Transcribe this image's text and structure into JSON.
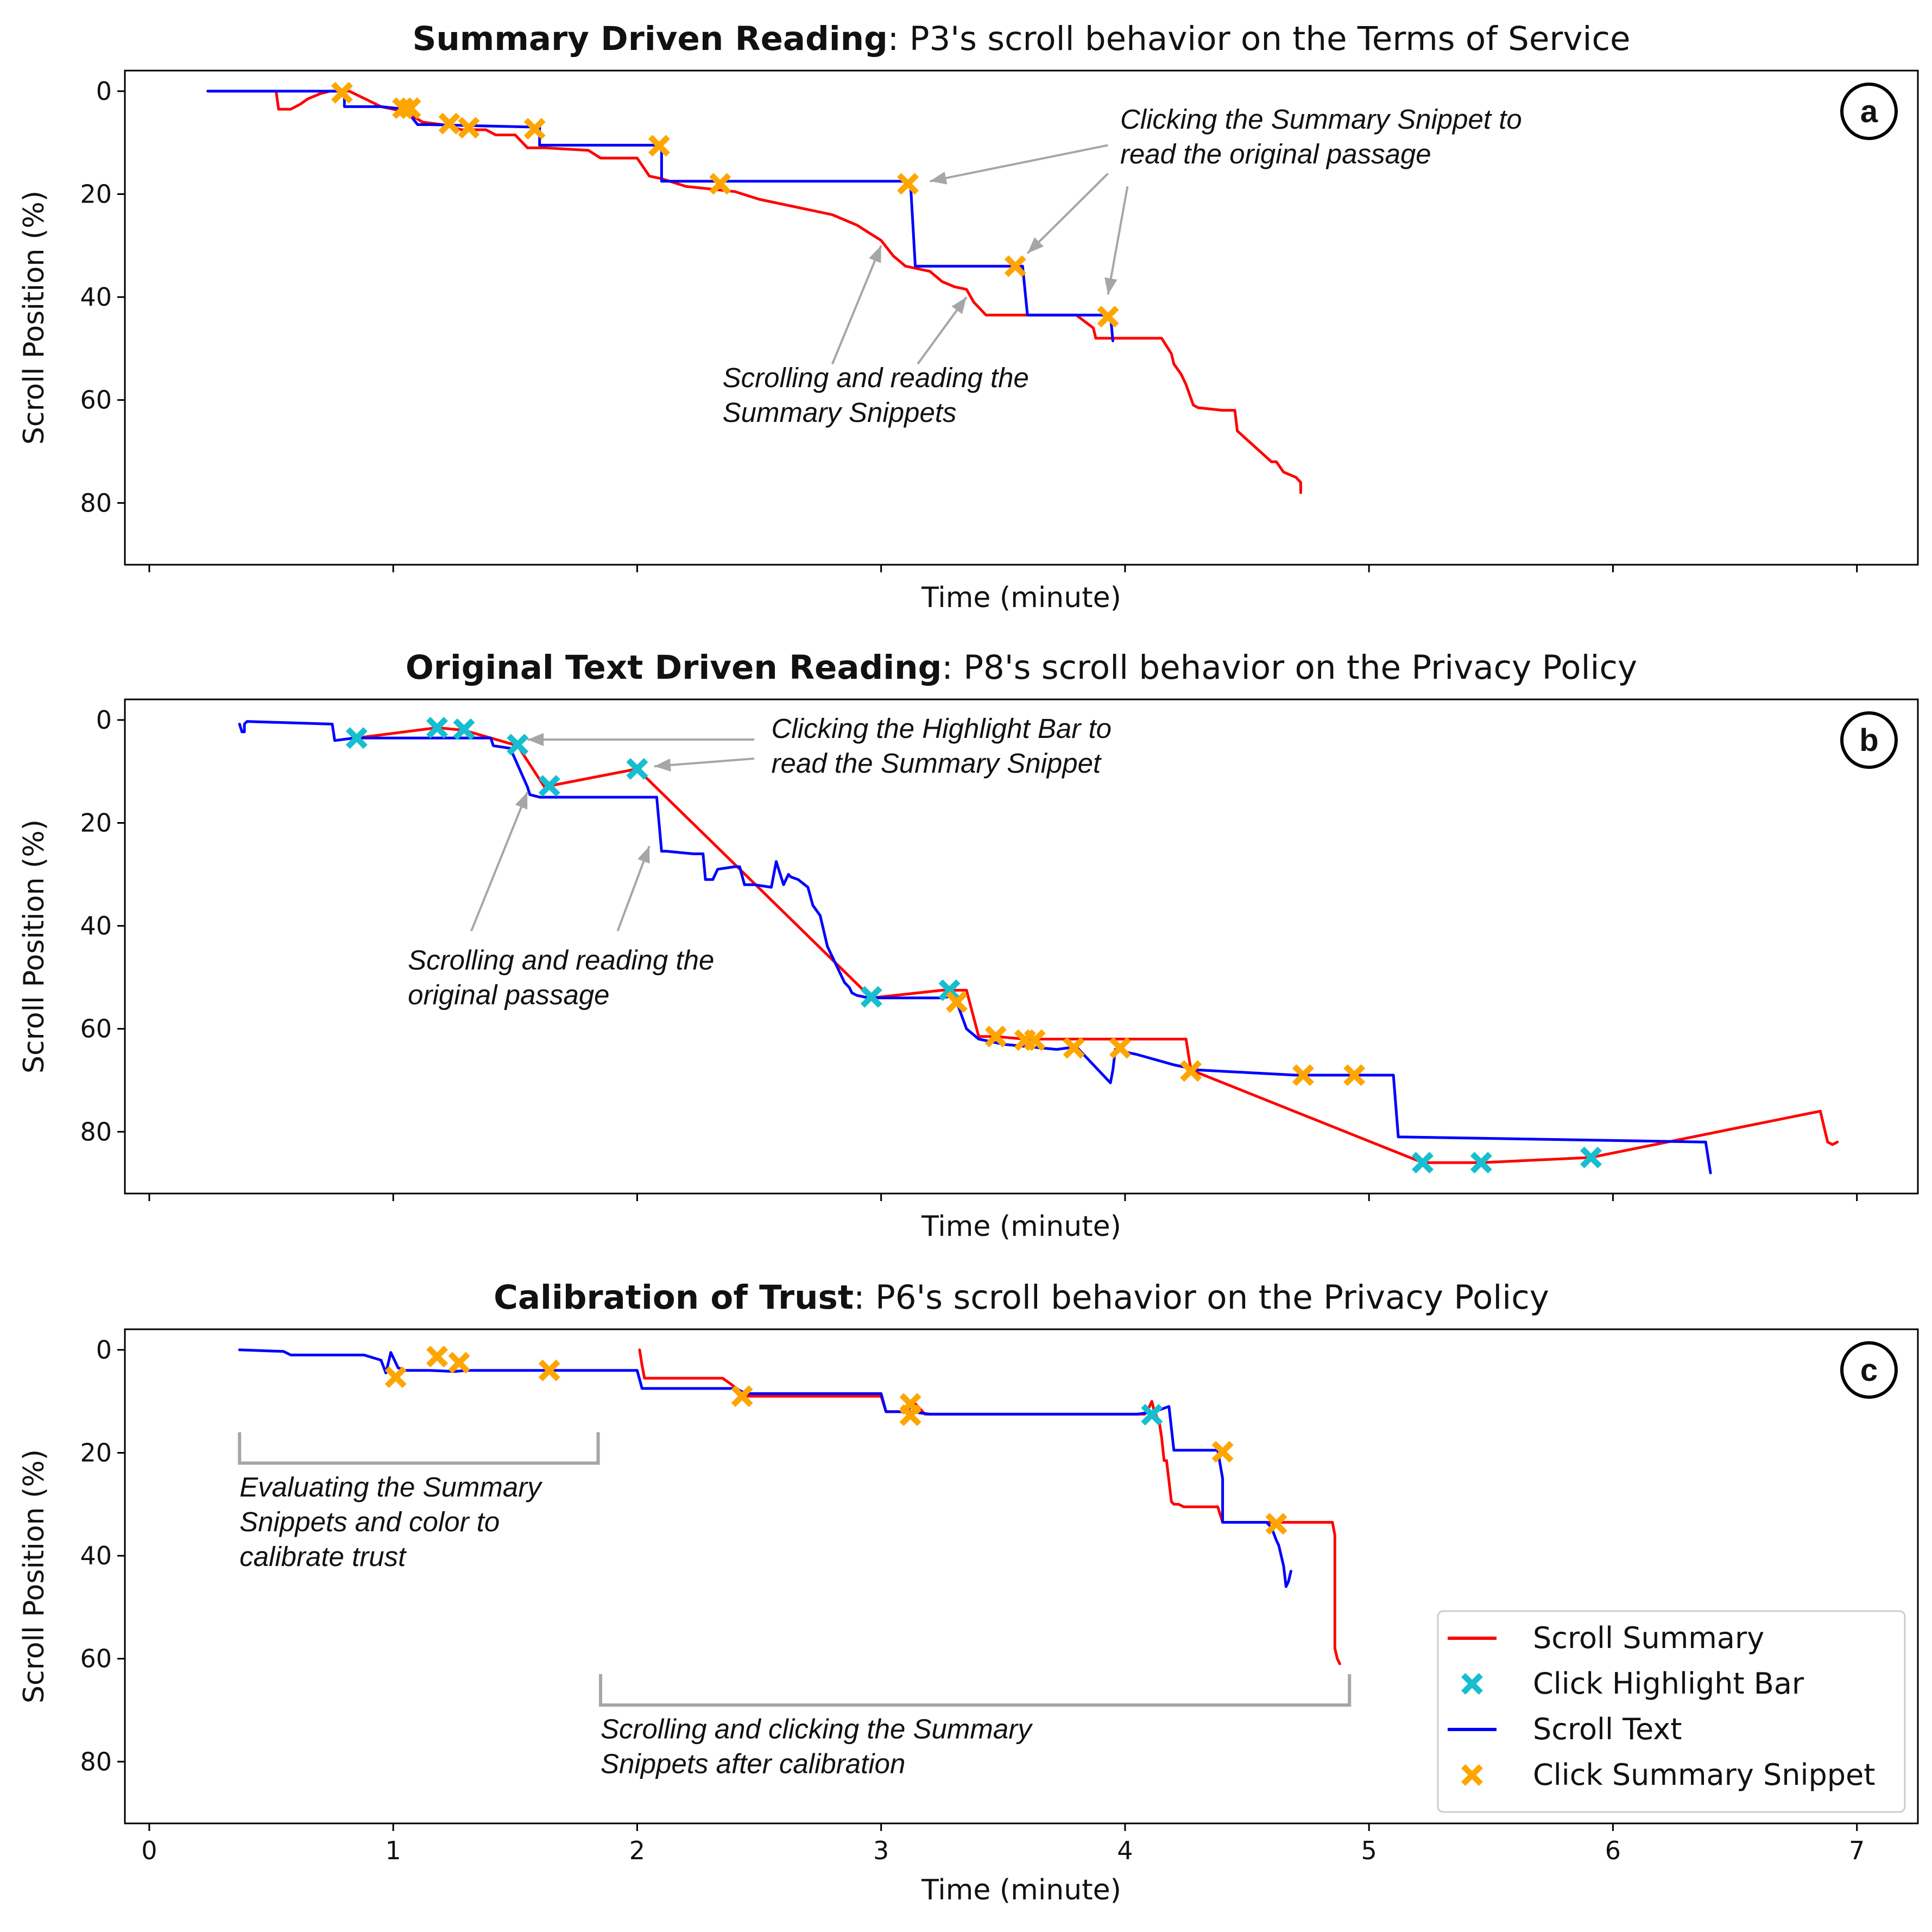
{
  "colors": {
    "scroll_summary": "#ff0000",
    "scroll_text": "#0000ff",
    "click_highlight_bar": "#17becf",
    "click_summary_snippet": "#ffa500",
    "annotation_arrow": "#a6a6a6",
    "bracket": "#a6a6a6"
  },
  "legend": {
    "position": "lower-right",
    "entries": [
      {
        "label": "Scroll Summary",
        "kind": "line",
        "color_key": "scroll_summary"
      },
      {
        "label": "Click Highlight Bar",
        "kind": "marker",
        "color_key": "click_highlight_bar"
      },
      {
        "label": "Scroll Text",
        "kind": "line",
        "color_key": "scroll_text"
      },
      {
        "label": "Click Summary Snippet",
        "kind": "marker",
        "color_key": "click_summary_snippet"
      }
    ]
  },
  "chart_data": [
    {
      "type": "line",
      "panel": "a",
      "title_bold": "Summary Driven Reading",
      "title_rest": ":  P3's scroll behavior on the Terms of Service",
      "xlabel": "Time (minute)",
      "ylabel": "Scroll Position (%)",
      "xlim": [
        -0.1,
        7.25
      ],
      "ylim": [
        92,
        -4
      ],
      "xticks": [
        0,
        1,
        2,
        3,
        4,
        5,
        6,
        7
      ],
      "yticks": [
        0,
        20,
        40,
        60,
        80
      ],
      "show_xtick_labels": false,
      "series": [
        {
          "name": "Scroll Summary",
          "color_key": "scroll_summary",
          "x": [
            0.24,
            0.52,
            0.53,
            0.58,
            0.62,
            0.65,
            0.7,
            0.74,
            0.82,
            0.95,
            1.05,
            1.12,
            1.2,
            1.28,
            1.38,
            1.42,
            1.5,
            1.55,
            1.62,
            1.8,
            1.85,
            2.0,
            2.05,
            2.1,
            2.2,
            2.4,
            2.5,
            2.65,
            2.8,
            2.9,
            2.95,
            3.0,
            3.05,
            3.1,
            3.2,
            3.25,
            3.3,
            3.35,
            3.38,
            3.4,
            3.43,
            3.5,
            3.62,
            3.8,
            3.87,
            3.88,
            3.95,
            4.0,
            4.15,
            4.19,
            4.2,
            4.23,
            4.25,
            4.28,
            4.3,
            4.4,
            4.45,
            4.46,
            4.6,
            4.62,
            4.65,
            4.7,
            4.72,
            4.72
          ],
          "y": [
            0,
            0,
            3.5,
            3.5,
            2.5,
            1.5,
            0.5,
            0,
            0,
            3,
            4,
            6,
            6.5,
            7.5,
            7.5,
            8.5,
            8.5,
            11,
            11,
            11.5,
            13,
            13,
            16.5,
            17,
            18.5,
            19.5,
            21,
            22.5,
            24,
            26,
            27.5,
            29,
            32,
            34,
            35,
            37,
            38,
            38.5,
            41,
            42,
            43.5,
            43.5,
            43.5,
            43.5,
            46,
            48,
            48,
            48,
            48,
            51,
            53,
            55,
            57,
            61,
            61.5,
            62,
            62,
            66,
            72,
            72,
            74,
            75,
            76,
            78
          ]
        },
        {
          "name": "Scroll Text",
          "color_key": "scroll_text",
          "x": [
            0.24,
            0.8,
            0.8,
            0.95,
            1.05,
            1.1,
            1.15,
            1.6,
            1.6,
            2.1,
            2.1,
            3.12,
            3.14,
            3.58,
            3.6,
            3.94,
            3.95
          ],
          "y": [
            0,
            0,
            3,
            3,
            3.5,
            6.5,
            6.5,
            7,
            10.5,
            10.5,
            17.5,
            17.5,
            34,
            34,
            43.5,
            43.5,
            48.5
          ]
        }
      ],
      "markers": [
        {
          "name": "Click Summary Snippet",
          "color_key": "click_summary_snippet",
          "x": [
            0.79,
            1.04,
            1.07,
            1.23,
            1.31,
            1.58,
            2.09,
            2.34,
            3.11,
            3.55,
            3.93
          ],
          "y": [
            0.3,
            3.3,
            3.3,
            6.3,
            7.1,
            7.3,
            10.6,
            18,
            18,
            34,
            43.8
          ]
        },
        {
          "name": "Click Highlight Bar",
          "color_key": "click_highlight_bar",
          "x": [],
          "y": []
        }
      ],
      "annotations": [
        {
          "text_lines": [
            "Clicking the Summary Snippet to",
            "read the original passage"
          ],
          "text_at": [
            3.98,
            7.3
          ],
          "arrows": [
            {
              "from": [
                3.93,
                10.5
              ],
              "to": [
                3.2,
                17.5
              ]
            },
            {
              "from": [
                3.93,
                16.0
              ],
              "to": [
                3.6,
                31.5
              ]
            },
            {
              "from": [
                4.01,
                18.5
              ],
              "to": [
                3.93,
                39.5
              ]
            }
          ]
        },
        {
          "text_lines": [
            "Scrolling and reading the",
            "Summary Snippets"
          ],
          "text_at": [
            2.35,
            57.5
          ],
          "arrows": [
            {
              "from": [
                2.8,
                53
              ],
              "to": [
                3.0,
                30
              ]
            },
            {
              "from": [
                3.15,
                53
              ],
              "to": [
                3.35,
                40
              ]
            }
          ]
        }
      ],
      "badge": "a"
    },
    {
      "type": "line",
      "panel": "b",
      "title_bold": "Original Text Driven Reading",
      "title_rest": ":  P8's scroll behavior on the Privacy Policy",
      "xlabel": "Time (minute)",
      "ylabel": "Scroll Position (%)",
      "xlim": [
        -0.1,
        7.25
      ],
      "ylim": [
        92,
        -4
      ],
      "xticks": [
        0,
        1,
        2,
        3,
        4,
        5,
        6,
        7
      ],
      "yticks": [
        0,
        20,
        40,
        60,
        80
      ],
      "show_xtick_labels": false,
      "series": [
        {
          "name": "Scroll Summary",
          "color_key": "scroll_summary",
          "x": [
            0.85,
            1.18,
            1.29,
            1.51,
            1.62,
            2.0,
            2.96,
            3.25,
            3.35,
            3.4,
            3.47,
            3.59,
            3.62,
            3.78,
            3.98,
            4.25,
            4.27,
            5.22,
            5.46,
            5.91,
            6.85,
            6.88,
            6.9,
            6.92
          ],
          "y": [
            3.5,
            1.5,
            2,
            5,
            13,
            9.5,
            54,
            52.5,
            52.5,
            61.5,
            61.5,
            62,
            62,
            62,
            62,
            62,
            68,
            86,
            86,
            85,
            76,
            82,
            82.5,
            82
          ],
          "stepwise": false
        },
        {
          "name": "Scroll Text",
          "color_key": "scroll_text",
          "x": [
            0.37,
            0.38,
            0.39,
            0.39,
            0.4,
            0.41,
            0.75,
            0.76,
            0.84,
            1.4,
            1.41,
            1.48,
            1.55,
            1.56,
            1.6,
            1.68,
            2.08,
            2.1,
            2.12,
            2.23,
            2.27,
            2.28,
            2.31,
            2.33,
            2.4,
            2.42,
            2.44,
            2.48,
            2.55,
            2.57,
            2.6,
            2.61,
            2.62,
            2.63,
            2.66,
            2.7,
            2.72,
            2.75,
            2.78,
            2.8,
            2.82,
            2.85,
            2.87,
            2.88,
            2.9,
            2.95,
            3.25,
            3.3,
            3.35,
            3.4,
            3.5,
            3.72,
            3.8,
            3.94,
            3.95,
            3.96,
            3.98,
            4.0,
            4.05,
            4.2,
            4.3,
            4.5,
            4.7,
            5.1,
            5.12,
            5.12,
            6.38,
            6.4
          ],
          "y": [
            0.8,
            2.3,
            2.3,
            0.8,
            0.3,
            0.3,
            0.8,
            4,
            3.5,
            3.5,
            5,
            5.5,
            13,
            14.5,
            15,
            15,
            15,
            25.5,
            25.5,
            26,
            26,
            31,
            31,
            29,
            28.5,
            28.5,
            32,
            32,
            32.5,
            27.5,
            32,
            31,
            30,
            30.5,
            31,
            32.5,
            36,
            38,
            44,
            46,
            48,
            51,
            52,
            53,
            53.5,
            54,
            54,
            53.5,
            60,
            62,
            63,
            64,
            63.5,
            70.5,
            68,
            64,
            64,
            64.5,
            65,
            67,
            68,
            68.5,
            69,
            69,
            81,
            81,
            82,
            88
          ]
        }
      ],
      "markers": [
        {
          "name": "Click Highlight Bar",
          "color_key": "click_highlight_bar",
          "x": [
            0.85,
            1.18,
            1.29,
            1.51,
            1.64,
            2.0,
            2.96,
            3.28,
            5.22,
            5.46,
            5.91
          ],
          "y": [
            3.5,
            1.5,
            1.8,
            4.8,
            12.8,
            9.5,
            53.8,
            52.5,
            86,
            86,
            85
          ]
        },
        {
          "name": "Click Summary Snippet",
          "color_key": "click_summary_snippet",
          "x": [
            3.31,
            3.47,
            3.59,
            3.63,
            3.79,
            3.98,
            4.27,
            4.73,
            4.94
          ],
          "y": [
            54.8,
            61.5,
            62.2,
            62.2,
            63.7,
            63.7,
            68.2,
            69,
            69
          ]
        }
      ],
      "annotations": [
        {
          "text_lines": [
            "Clicking the Highlight Bar to",
            "read the Summary Snippet"
          ],
          "text_at": [
            2.55,
            3.5
          ],
          "arrows": [
            {
              "from": [
                2.48,
                3.8
              ],
              "to": [
                1.55,
                3.8
              ]
            },
            {
              "from": [
                2.48,
                7.5
              ],
              "to": [
                2.07,
                9
              ]
            }
          ]
        },
        {
          "text_lines": [
            "Scrolling and reading the",
            "original passage"
          ],
          "text_at": [
            1.06,
            48.5
          ],
          "arrows": [
            {
              "from": [
                1.32,
                41
              ],
              "to": [
                1.55,
                14
              ]
            },
            {
              "from": [
                1.92,
                41
              ],
              "to": [
                2.05,
                24.5
              ]
            }
          ]
        }
      ],
      "badge": "b"
    },
    {
      "type": "line",
      "panel": "c",
      "title_bold": "Calibration of Trust",
      "title_rest": ":  P6's scroll behavior on the Privacy Policy",
      "xlabel": "Time (minute)",
      "ylabel": "Scroll Position (%)",
      "xlim": [
        -0.1,
        7.25
      ],
      "ylim": [
        92,
        -4
      ],
      "xticks": [
        0,
        1,
        2,
        3,
        4,
        5,
        6,
        7
      ],
      "yticks": [
        0,
        20,
        40,
        60,
        80
      ],
      "show_xtick_labels": true,
      "series": [
        {
          "name": "Scroll Summary",
          "color_key": "scroll_summary",
          "x": [
            2.01,
            2.02,
            2.03,
            2.35,
            2.38,
            2.45,
            3.0,
            3.02,
            3.1,
            3.14,
            3.18,
            4.08,
            4.1,
            4.11,
            4.12,
            4.14,
            4.15,
            4.16,
            4.17,
            4.19,
            4.2,
            4.22,
            4.24,
            4.3,
            4.38,
            4.4,
            4.42,
            4.85,
            4.86,
            4.86,
            4.87,
            4.88
          ],
          "y": [
            0,
            3,
            5.5,
            5.5,
            6.5,
            9,
            9,
            12,
            12,
            10.5,
            12.5,
            12.5,
            11,
            10,
            12,
            14,
            17,
            21.5,
            21.5,
            29.5,
            30,
            30,
            30.5,
            30.5,
            30.5,
            33.5,
            33.5,
            33.5,
            36,
            58,
            60,
            61
          ]
        },
        {
          "name": "Scroll Text",
          "color_key": "scroll_text",
          "x": [
            0.37,
            0.55,
            0.58,
            0.88,
            0.95,
            0.97,
            0.99,
            1.02,
            1.05,
            1.15,
            1.25,
            1.3,
            1.4,
            1.64,
            2.0,
            2.02,
            2.4,
            2.45,
            3.0,
            3.02,
            3.12,
            3.2,
            4.05,
            4.12,
            4.18,
            4.2,
            4.38,
            4.4,
            4.4,
            4.58,
            4.6,
            4.62,
            4.63,
            4.65,
            4.66,
            4.67,
            4.68
          ],
          "y": [
            0,
            0.3,
            1,
            1,
            2,
            4.5,
            0.5,
            3.5,
            4,
            4,
            4.2,
            4,
            4,
            4,
            4,
            7.5,
            7.5,
            8.5,
            8.5,
            12,
            12,
            12.5,
            12.5,
            12,
            11,
            19.5,
            19.5,
            25,
            33.5,
            33.5,
            34.5,
            37,
            38,
            42,
            46,
            45,
            43
          ]
        }
      ],
      "markers": [
        {
          "name": "Click Summary Snippet",
          "color_key": "click_summary_snippet",
          "x": [
            1.01,
            1.18,
            1.27,
            1.64,
            2.43,
            3.12,
            3.12,
            4.4,
            4.62
          ],
          "y": [
            5.3,
            1.3,
            2.5,
            4,
            9,
            10.5,
            12.7,
            19.8,
            33.8
          ]
        },
        {
          "name": "Click Highlight Bar",
          "color_key": "click_highlight_bar",
          "x": [
            4.11
          ],
          "y": [
            12.6
          ]
        }
      ],
      "brackets": [
        {
          "x0": 0.37,
          "x1": 1.84,
          "y_tick": 16,
          "y_base": 22,
          "text_lines": [
            "Evaluating the Summary",
            "Snippets and color to",
            "calibrate trust"
          ],
          "text_at": [
            0.37,
            28.5
          ]
        },
        {
          "x0": 1.85,
          "x1": 4.92,
          "y_tick": 63,
          "y_base": 69,
          "text_lines": [
            "Scrolling and clicking the Summary",
            "Snippets after calibration"
          ],
          "text_at": [
            1.85,
            75.5
          ]
        }
      ],
      "badge": "c"
    }
  ]
}
